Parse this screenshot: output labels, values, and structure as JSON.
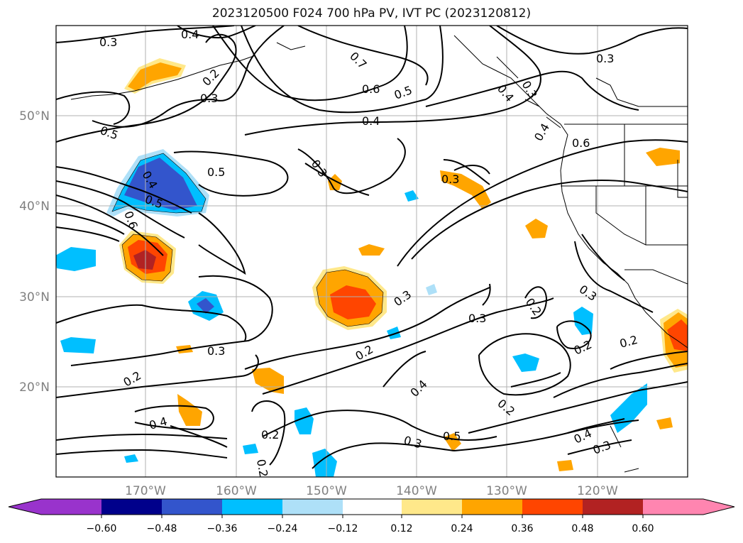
{
  "title": "2023120500 F024 700 hPa PV, IVT PC (2023120812)",
  "map": {
    "lat_labels": [
      "50°N",
      "40°N",
      "30°N",
      "20°N"
    ],
    "lon_labels": [
      "170°W",
      "160°W",
      "150°W",
      "140°W",
      "130°W",
      "120°W"
    ],
    "contour_labels": [
      "0.3",
      "0.4",
      "0.2",
      "0.3",
      "0.7",
      "0.6",
      "0.5",
      "0.4",
      "0.3",
      "0.3",
      "0.4",
      "0.4",
      "0.6",
      "0.3",
      "0.5",
      "0.5",
      "0.3",
      "0.3",
      "0.4",
      "0.5",
      "0.6",
      "0.3",
      "0.3",
      "0.2",
      "0.3",
      "0.2",
      "0.4",
      "0.2",
      "0.2",
      "0.2",
      "0.2",
      "0.4",
      "0.5",
      "0.2",
      "0.4",
      "0.3",
      "0.2",
      "0.3"
    ],
    "shading_colors": {
      "neg_060": "#9933cc",
      "neg_048": "#00008b",
      "neg_036": "#3355cc",
      "neg_024": "#00bfff",
      "neg_012": "#aee0f8",
      "zero": "#ffffff",
      "pos_012": "#ffe88a",
      "pos_024": "#ffa500",
      "pos_036": "#ff4500",
      "pos_048": "#b22222",
      "pos_060": "#ff85b0"
    }
  },
  "colorbar": {
    "ticks": [
      "−0.60",
      "−0.48",
      "−0.36",
      "−0.24",
      "−0.12",
      "0.12",
      "0.24",
      "0.36",
      "0.48",
      "0.60"
    ],
    "colors": [
      "#9933cc",
      "#00008b",
      "#3355cc",
      "#00bfff",
      "#aee0f8",
      "#ffffff",
      "#ffe88a",
      "#ffa500",
      "#ff4500",
      "#b22222",
      "#ff85b0"
    ]
  }
}
